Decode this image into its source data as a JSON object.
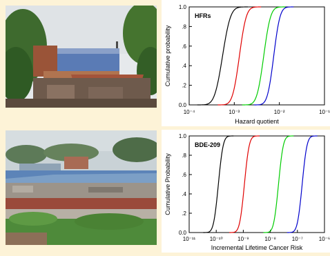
{
  "figures": [
    {
      "photo": {
        "description_icon": "photo-residential-buildings"
      }
    },
    {
      "photo": {
        "description_icon": "photo-ewaste-site"
      }
    }
  ],
  "chart_data": [
    {
      "type": "line",
      "panel_label": "HFRs",
      "xlabel": "Hazard quotient",
      "ylabel": "Cumulative probability",
      "xscale": "log",
      "xlim": [
        0.0001,
        0.1
      ],
      "ylim": [
        0,
        1
      ],
      "x_tick_labels": [
        "10⁻⁴",
        "10⁻³",
        "10⁻²",
        "10⁻¹"
      ],
      "x_tick_values": [
        0.0001,
        0.001,
        0.01,
        0.1
      ],
      "y_tick_labels": [
        "0.0",
        ".2",
        ".4",
        ".6",
        ".8",
        "1.0"
      ],
      "y_tick_values": [
        0,
        0.2,
        0.4,
        0.6,
        0.8,
        1.0
      ],
      "series": [
        {
          "color": "#000000",
          "median": 0.00055,
          "spread": 0.14
        },
        {
          "color": "#e00000",
          "median": 0.0013,
          "spread": 0.12
        },
        {
          "color": "#00cc00",
          "median": 0.0045,
          "spread": 0.12
        },
        {
          "color": "#0000cc",
          "median": 0.0075,
          "spread": 0.11
        }
      ]
    },
    {
      "type": "line",
      "panel_label": "BDE-209",
      "xlabel": "Incremental Lifetime Cancer Risk",
      "ylabel": "Cumulative Probability",
      "xscale": "log",
      "xlim": [
        1e-11,
        1e-06
      ],
      "ylim": [
        0,
        1
      ],
      "x_tick_labels": [
        "10⁻¹¹",
        "10⁻¹⁰",
        "10⁻⁹",
        "10⁻⁸",
        "10⁻⁷",
        "10⁻⁶"
      ],
      "x_tick_values": [
        1e-11,
        1e-10,
        1e-09,
        1e-08,
        1e-07,
        1e-06
      ],
      "y_tick_labels": [
        "0.0",
        ".2",
        ".4",
        ".6",
        ".8",
        "1.0"
      ],
      "y_tick_values": [
        0,
        0.2,
        0.4,
        0.6,
        0.8,
        1.0
      ],
      "series": [
        {
          "color": "#000000",
          "median": 1.2e-10,
          "spread": 0.14
        },
        {
          "color": "#e00000",
          "median": 1.1e-09,
          "spread": 0.14
        },
        {
          "color": "#00cc00",
          "median": 2e-08,
          "spread": 0.14
        },
        {
          "color": "#0000cc",
          "median": 1.5e-07,
          "spread": 0.14
        }
      ]
    }
  ]
}
